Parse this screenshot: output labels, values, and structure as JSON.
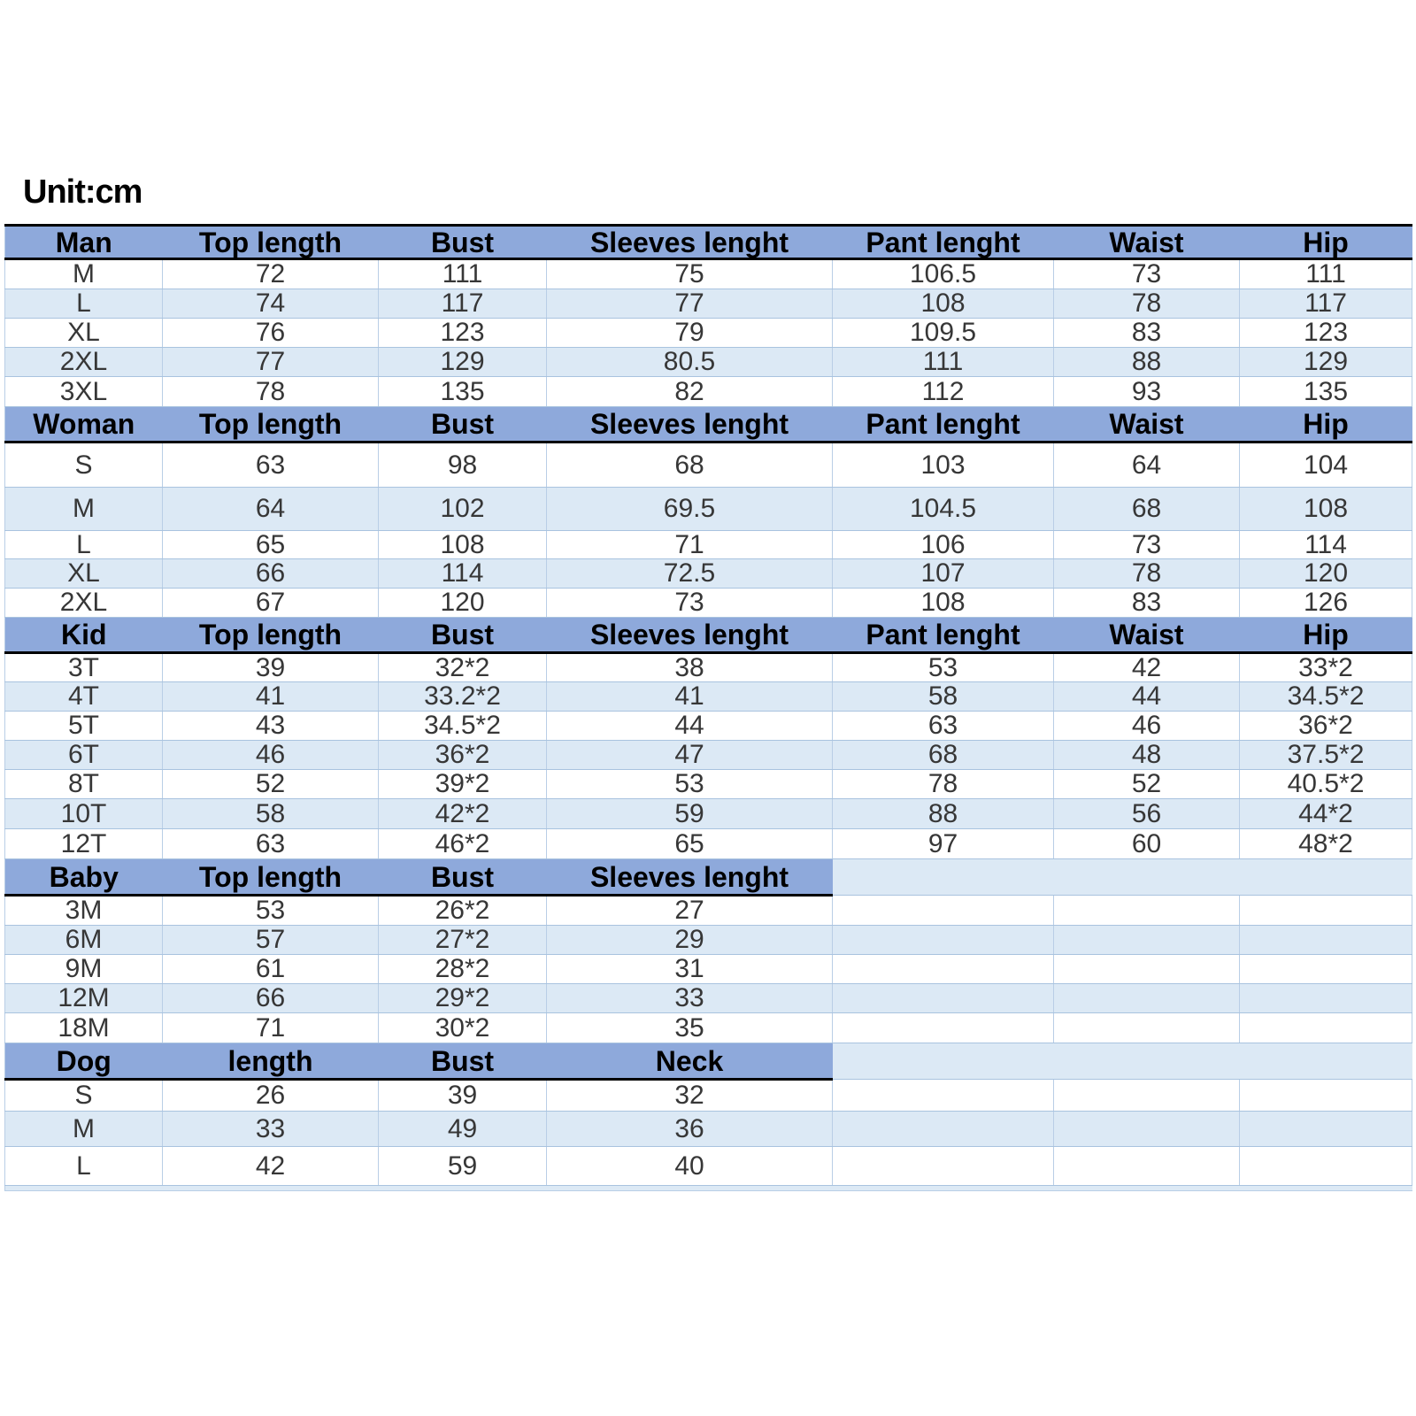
{
  "page": {
    "unit_label": "Unit:cm"
  },
  "colors": {
    "header_bg": "#8EA9DB",
    "row_tint": "#DCE9F5",
    "row_white": "#FFFFFF",
    "grid_border": "#A9C3DF",
    "heavy_border": "#000000",
    "header_text": "#000000",
    "data_text": "#373737"
  },
  "table": {
    "columns": 7,
    "sections": [
      {
        "name": "Man",
        "header_span": 7,
        "headers": [
          "Man",
          "Top length",
          "Bust",
          "Sleeves lenght",
          "Pant lenght",
          "Waist",
          "Hip"
        ],
        "rows": [
          [
            "M",
            "72",
            "111",
            "75",
            "106.5",
            "73",
            "111"
          ],
          [
            "L",
            "74",
            "117",
            "77",
            "108",
            "78",
            "117"
          ],
          [
            "XL",
            "76",
            "123",
            "79",
            "109.5",
            "83",
            "123"
          ],
          [
            "2XL",
            "77",
            "129",
            "80.5",
            "111",
            "88",
            "129"
          ],
          [
            "3XL",
            "78",
            "135",
            "82",
            "112",
            "93",
            "135"
          ]
        ]
      },
      {
        "name": "Woman",
        "header_span": 7,
        "headers": [
          "Woman",
          "Top length",
          "Bust",
          "Sleeves lenght",
          "Pant lenght",
          "Waist",
          "Hip"
        ],
        "rows": [
          [
            "S",
            "63",
            "98",
            "68",
            "103",
            "64",
            "104"
          ],
          [
            "M",
            "64",
            "102",
            "69.5",
            "104.5",
            "68",
            "108"
          ],
          [
            "L",
            "65",
            "108",
            "71",
            "106",
            "73",
            "114"
          ],
          [
            "XL",
            "66",
            "114",
            "72.5",
            "107",
            "78",
            "120"
          ],
          [
            "2XL",
            "67",
            "120",
            "73",
            "108",
            "83",
            "126"
          ]
        ]
      },
      {
        "name": "Kid",
        "header_span": 7,
        "headers": [
          "Kid",
          "Top length",
          "Bust",
          "Sleeves lenght",
          "Pant lenght",
          "Waist",
          "Hip"
        ],
        "rows": [
          [
            "3T",
            "39",
            "32*2",
            "38",
            "53",
            "42",
            "33*2"
          ],
          [
            "4T",
            "41",
            "33.2*2",
            "41",
            "58",
            "44",
            "34.5*2"
          ],
          [
            "5T",
            "43",
            "34.5*2",
            "44",
            "63",
            "46",
            "36*2"
          ],
          [
            "6T",
            "46",
            "36*2",
            "47",
            "68",
            "48",
            "37.5*2"
          ],
          [
            "8T",
            "52",
            "39*2",
            "53",
            "78",
            "52",
            "40.5*2"
          ],
          [
            "10T",
            "58",
            "42*2",
            "59",
            "88",
            "56",
            "44*2"
          ],
          [
            "12T",
            "63",
            "46*2",
            "65",
            "97",
            "60",
            "48*2"
          ]
        ]
      },
      {
        "name": "Baby",
        "header_span": 4,
        "headers": [
          "Baby",
          "Top length",
          "Bust",
          "Sleeves lenght",
          "",
          "",
          ""
        ],
        "rows": [
          [
            "3M",
            "53",
            "26*2",
            "27",
            "",
            "",
            ""
          ],
          [
            "6M",
            "57",
            "27*2",
            "29",
            "",
            "",
            ""
          ],
          [
            "9M",
            "61",
            "28*2",
            "31",
            "",
            "",
            ""
          ],
          [
            "12M",
            "66",
            "29*2",
            "33",
            "",
            "",
            ""
          ],
          [
            "18M",
            "71",
            "30*2",
            "35",
            "",
            "",
            ""
          ]
        ]
      },
      {
        "name": "Dog",
        "header_span": 4,
        "headers": [
          "Dog",
          "length",
          "Bust",
          "Neck",
          "",
          "",
          ""
        ],
        "rows": [
          [
            "S",
            "26",
            "39",
            "32",
            "",
            "",
            ""
          ],
          [
            "M",
            "33",
            "49",
            "36",
            "",
            "",
            ""
          ],
          [
            "L",
            "42",
            "59",
            "40",
            "",
            "",
            ""
          ]
        ]
      }
    ]
  }
}
